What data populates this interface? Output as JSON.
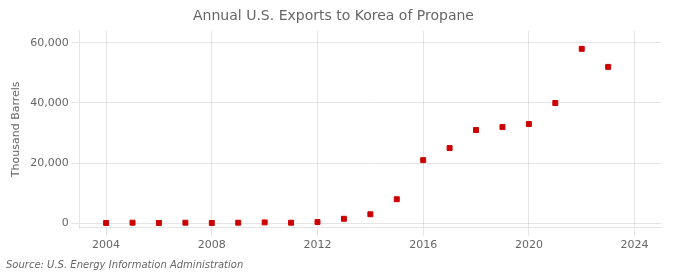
{
  "chart_data": {
    "type": "scatter",
    "title": "Annual U.S. Exports to Korea of Propane",
    "ylabel": "Thousand Barrels",
    "annotation": "Source: U.S. Energy Information Administration",
    "x": [
      2004,
      2005,
      2006,
      2007,
      2008,
      2009,
      2010,
      2011,
      2012,
      2013,
      2014,
      2015,
      2016,
      2017,
      2018,
      2019,
      2020,
      2021,
      2022,
      2023
    ],
    "values": [
      100,
      200,
      100,
      200,
      100,
      200,
      300,
      200,
      400,
      1500,
      3000,
      8000,
      21000,
      25000,
      31000,
      32000,
      33000,
      40000,
      58000,
      52000
    ],
    "color": "#cc0000",
    "marker": "square",
    "xlim": [
      2003.0,
      2025.0
    ],
    "ylim": [
      -1500,
      64000
    ],
    "xticks": [
      2004,
      2008,
      2012,
      2016,
      2020,
      2024
    ],
    "yticks": [
      0,
      {
        "value": 20000,
        "label": "20,000"
      },
      {
        "value": 40000,
        "label": "40,000"
      },
      {
        "value": 60000,
        "label": "60,000"
      }
    ],
    "grid": true
  }
}
